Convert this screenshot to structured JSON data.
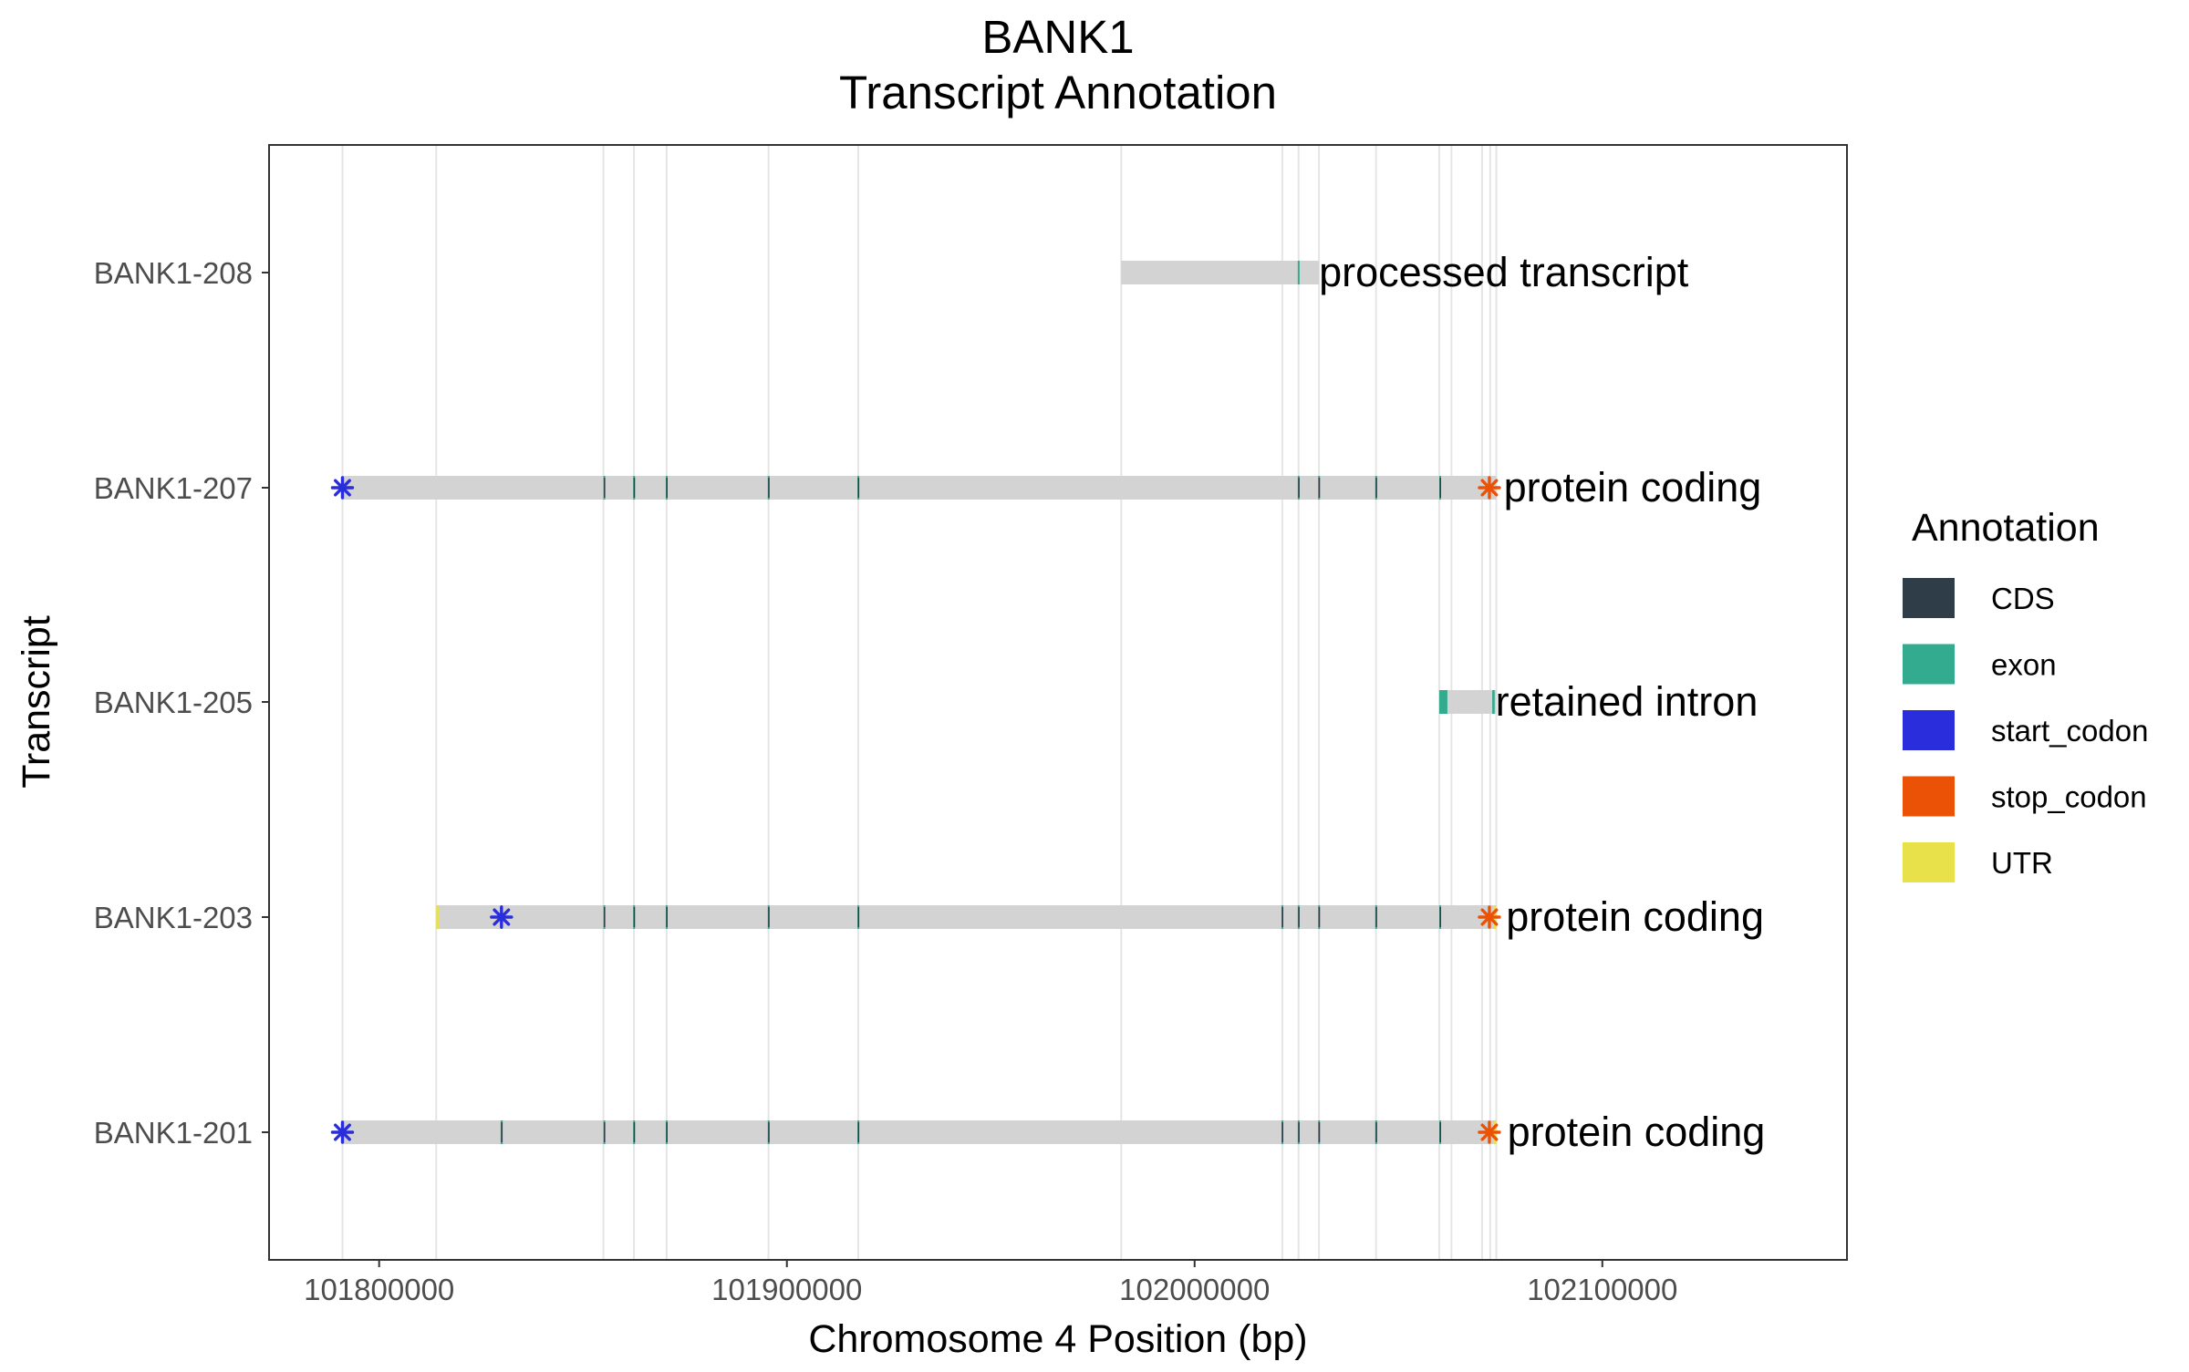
{
  "chart_data": {
    "type": "gene-track",
    "title_line1": "BANK1",
    "title_line2": "Transcript Annotation",
    "xlabel": "Chromosome 4 Position (bp)",
    "ylabel": "Transcript",
    "xlim": [
      101773000,
      102160000
    ],
    "x_ticks": [
      101800000,
      101900000,
      102000000,
      102100000
    ],
    "x_tick_labels": [
      "101800000",
      "101900000",
      "102000000",
      "102100000"
    ],
    "gridlines": [
      101791000,
      101814000,
      101855000,
      101862500,
      101870500,
      101895500,
      101917500,
      101982000,
      102021500,
      102025500,
      102030500,
      102044500,
      102060000,
      102063000,
      102070500,
      102072500,
      102074000
    ],
    "transcripts": [
      {
        "name": "BANK1-208",
        "biotype": "processed transcript",
        "start": 101982000,
        "end": 102030500,
        "label_x": 102030500,
        "exons": [
          [
            102025300,
            102025700
          ]
        ],
        "cds": [],
        "utr": [],
        "start_codon": null,
        "stop_codon": null
      },
      {
        "name": "BANK1-207",
        "biotype": "protein coding",
        "start": 101791000,
        "end": 102074000,
        "label_x": 102075800,
        "exons": [
          [
            101855000,
            101855400
          ],
          [
            101862300,
            101862700
          ],
          [
            101870300,
            101870700
          ],
          [
            101895300,
            101895700
          ],
          [
            101917300,
            101917700
          ],
          [
            102025300,
            102025700
          ],
          [
            102030300,
            102030700
          ],
          [
            102044300,
            102044700
          ],
          [
            102060000,
            102060400
          ]
        ],
        "cds": [
          [
            101855000,
            101855400
          ],
          [
            101862300,
            101862700
          ],
          [
            101870300,
            101870700
          ],
          [
            101895300,
            101895700
          ],
          [
            101917300,
            101917700
          ],
          [
            102025300,
            102025700
          ],
          [
            102030300,
            102030700
          ],
          [
            102044300,
            102044700
          ],
          [
            102060000,
            102060400
          ]
        ],
        "utr": [],
        "start_codon": 101791000,
        "stop_codon": 102072300
      },
      {
        "name": "BANK1-205",
        "biotype": "retained intron",
        "start": 102060000,
        "end": 102074000,
        "label_x": 102073800,
        "exons": [
          [
            102060000,
            102062000
          ],
          [
            102073000,
            102073600
          ]
        ],
        "cds": [],
        "utr": [],
        "start_codon": null,
        "stop_codon": null
      },
      {
        "name": "BANK1-203",
        "biotype": "protein coding",
        "start": 101814000,
        "end": 102074000,
        "label_x": 102076400,
        "exons": [
          [
            101829800,
            101830200
          ],
          [
            101855000,
            101855400
          ],
          [
            101862300,
            101862700
          ],
          [
            101870300,
            101870700
          ],
          [
            101895300,
            101895700
          ],
          [
            101917300,
            101917700
          ],
          [
            102021300,
            102021700
          ],
          [
            102025300,
            102025700
          ],
          [
            102030300,
            102030700
          ],
          [
            102044300,
            102044700
          ],
          [
            102060000,
            102060400
          ]
        ],
        "cds": [
          [
            101855000,
            101855400
          ],
          [
            101862300,
            101862700
          ],
          [
            101870300,
            101870700
          ],
          [
            101895300,
            101895700
          ],
          [
            101917300,
            101917700
          ],
          [
            102021300,
            102021700
          ],
          [
            102025300,
            102025700
          ],
          [
            102030300,
            102030700
          ],
          [
            102044300,
            102044700
          ],
          [
            102060000,
            102060400
          ]
        ],
        "utr": [
          [
            101814000,
            101814400
          ],
          [
            102073300,
            102074000
          ]
        ],
        "start_codon": 101830000,
        "stop_codon": 102072300
      },
      {
        "name": "BANK1-201",
        "biotype": "protein coding",
        "start": 101791000,
        "end": 102074000,
        "label_x": 102076700,
        "exons": [
          [
            101829800,
            101830300
          ],
          [
            101855000,
            101855400
          ],
          [
            101862300,
            101862700
          ],
          [
            101870300,
            101870700
          ],
          [
            101895300,
            101895700
          ],
          [
            101917300,
            101917700
          ],
          [
            102021300,
            102021700
          ],
          [
            102025300,
            102025700
          ],
          [
            102030300,
            102030700
          ],
          [
            102044300,
            102044700
          ],
          [
            102060000,
            102060400
          ]
        ],
        "cds": [
          [
            101829800,
            101830300
          ],
          [
            101855000,
            101855400
          ],
          [
            101862300,
            101862700
          ],
          [
            101870300,
            101870700
          ],
          [
            101895300,
            101895700
          ],
          [
            101917300,
            101917700
          ],
          [
            102021300,
            102021700
          ],
          [
            102025300,
            102025700
          ],
          [
            102030300,
            102030700
          ],
          [
            102044300,
            102044700
          ],
          [
            102060000,
            102060400
          ]
        ],
        "utr": [
          [
            102073300,
            102074000
          ]
        ],
        "start_codon": 101791000,
        "stop_codon": 102072300
      }
    ],
    "legend": {
      "title": "Annotation",
      "placement": "right",
      "items": [
        {
          "label": "CDS",
          "color": "#2E3D48"
        },
        {
          "label": "exon",
          "color": "#33AB8E"
        },
        {
          "label": "start_codon",
          "color": "#2A2DDB"
        },
        {
          "label": "stop_codon",
          "color": "#EB5206"
        },
        {
          "label": "UTR",
          "color": "#E8E14A"
        }
      ]
    },
    "colors": {
      "transcript_bar": "#D3D3D3",
      "gridline": "#E5E5E5",
      "panel_border": "#333333"
    }
  }
}
